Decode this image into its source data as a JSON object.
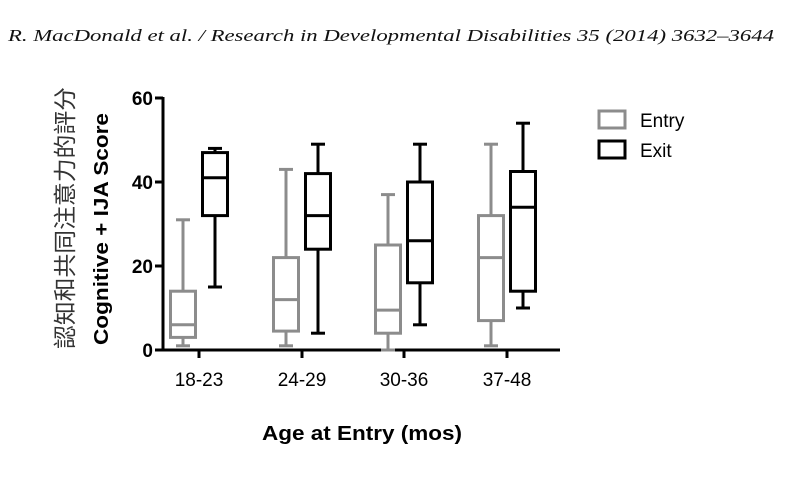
{
  "page": {
    "running_head": "R. MacDonald et al. / Research in Developmental Disabilities 35 (2014) 3632–3644",
    "side_annotation": "認知和共同注意力的評分"
  },
  "colors": {
    "entry": "#8c8c8c",
    "exit": "#000000",
    "background": "#ffffff"
  },
  "chart_data": {
    "type": "box",
    "categories": [
      "18-23",
      "24-29",
      "30-36",
      "37-48"
    ],
    "series": [
      {
        "name": "Entry",
        "color": "#8c8c8c",
        "boxes": [
          {
            "min": 1,
            "q1": 3,
            "median": 6,
            "q3": 14,
            "max": 31
          },
          {
            "min": 1,
            "q1": 4.5,
            "median": 12,
            "q3": 22,
            "max": 43
          },
          {
            "min": 0,
            "q1": 4,
            "median": 9.5,
            "q3": 25,
            "max": 37
          },
          {
            "min": 1,
            "q1": 7,
            "median": 22,
            "q3": 32,
            "max": 49
          }
        ]
      },
      {
        "name": "Exit",
        "color": "#000000",
        "boxes": [
          {
            "min": 15,
            "q1": 32,
            "median": 41,
            "q3": 47,
            "max": 48
          },
          {
            "min": 4,
            "q1": 24,
            "median": 32,
            "q3": 42,
            "max": 49
          },
          {
            "min": 6,
            "q1": 16,
            "median": 26,
            "q3": 40,
            "max": 49
          },
          {
            "min": 10,
            "q1": 14,
            "median": 34,
            "q3": 42.5,
            "max": 54
          }
        ]
      }
    ],
    "xlabel": "Age at Entry (mos)",
    "ylabel": "Cognitive + IJA Score",
    "ylim": [
      0,
      60
    ],
    "yticks": [
      0,
      20,
      40,
      60
    ],
    "legend": "right",
    "grid": false
  }
}
